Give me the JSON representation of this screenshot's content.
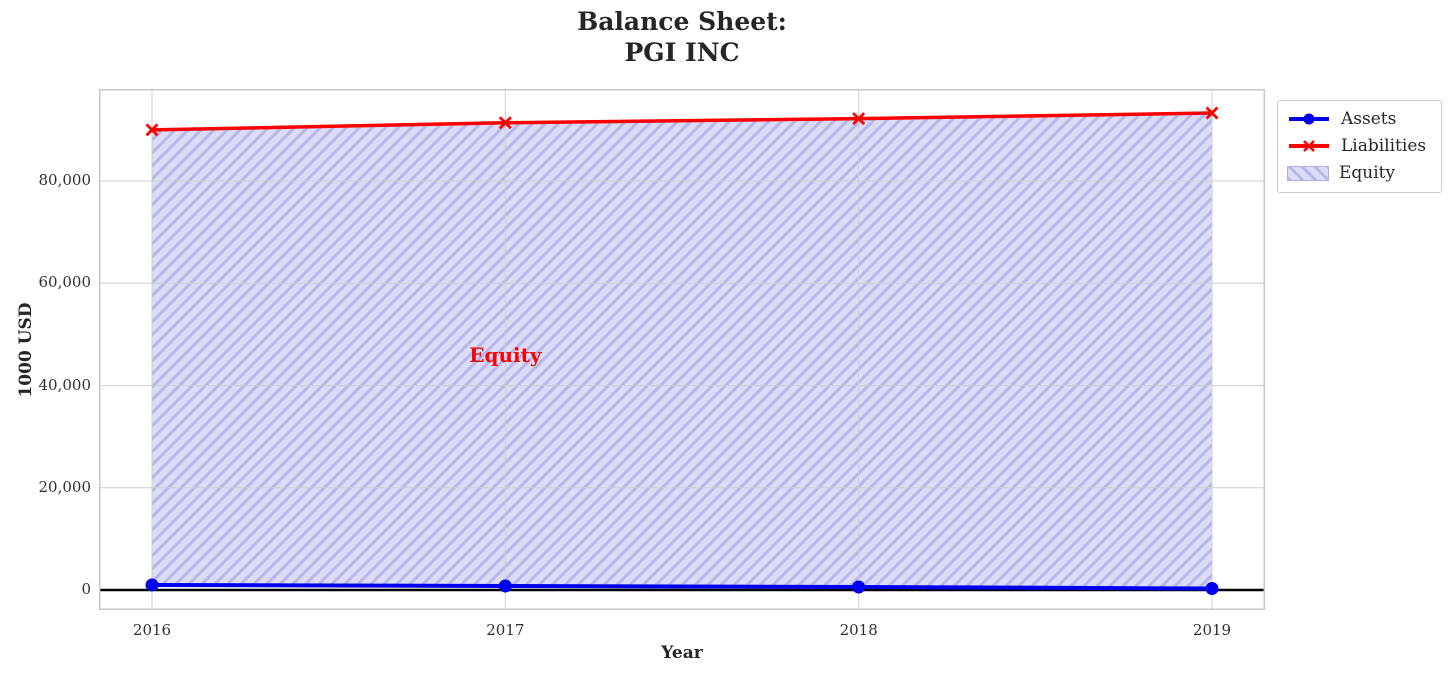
{
  "chart_data": {
    "type": "area",
    "title": "Balance Sheet:\nPGI INC",
    "title_lines": [
      "Balance Sheet:",
      "PGI INC"
    ],
    "xlabel": "Year",
    "ylabel": "1000 USD",
    "x": [
      2016,
      2017,
      2018,
      2019
    ],
    "series": [
      {
        "name": "Assets",
        "color": "#0000ee",
        "marker": "circle",
        "values": [
          1000,
          800,
          600,
          300
        ]
      },
      {
        "name": "Liabilities",
        "color": "#ff0000",
        "marker": "x",
        "values": [
          90000,
          91400,
          92200,
          93300
        ]
      }
    ],
    "fill_between": {
      "name": "Equity",
      "lower_series": "Assets",
      "upper_series": "Liabilities",
      "fill_color": "#dcdcf7",
      "hatch_color": "#b6b6ec",
      "hatch_style": "/"
    },
    "annotation": {
      "text": "Equity",
      "x": 2017,
      "y": 46000,
      "color": "#ff0000"
    },
    "xlim": [
      2015.85,
      2019.15
    ],
    "ylim": [
      -3900,
      98000
    ],
    "xticks": [
      2016,
      2017,
      2018,
      2019
    ],
    "xtick_labels": [
      "2016",
      "2017",
      "2018",
      "2019"
    ],
    "yticks": [
      0,
      20000,
      40000,
      60000,
      80000
    ],
    "ytick_labels": [
      "0",
      "20,000",
      "40,000",
      "60,000",
      "80,000"
    ],
    "grid": true,
    "zero_line": true,
    "legend": {
      "position": "upper-right-outside",
      "items": [
        {
          "label": "Assets"
        },
        {
          "label": "Liabilities"
        },
        {
          "label": "Equity"
        }
      ]
    }
  }
}
